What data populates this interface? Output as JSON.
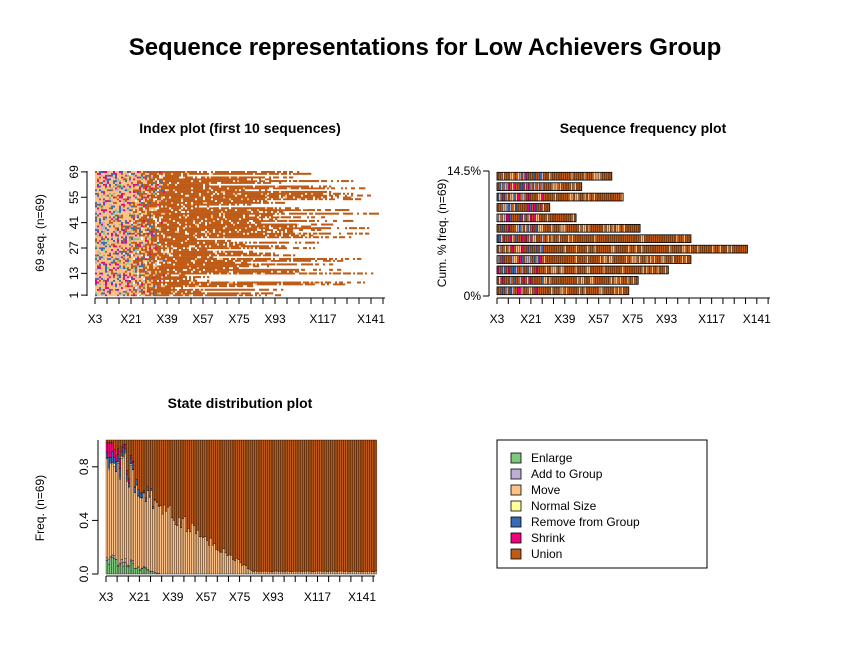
{
  "main_title": "Sequence representations for Low Achievers Group",
  "colors": {
    "Enlarge": "#7fc97f",
    "Add to Group": "#beaed4",
    "Move": "#fdc086",
    "Normal Size": "#ffff99",
    "Remove from Group": "#386cb0",
    "Shrink": "#f0027f",
    "Union": "#bf5b17"
  },
  "x_tick_labels": [
    "X3",
    "X21",
    "X39",
    "X57",
    "X75",
    "X93",
    "X117",
    "X141"
  ],
  "chart_data": [
    {
      "type": "heatmap",
      "title": "Index plot (first 10 sequences)",
      "ylabel": "69 seq. (n=69)",
      "y_tick_labels": [
        "1",
        "13",
        "27",
        "41",
        "55",
        "69"
      ],
      "n_sequences": 69,
      "x_range": [
        "X3",
        "X148"
      ]
    },
    {
      "type": "bar",
      "title": "Sequence frequency plot",
      "ylabel": "Cum. % freq. (n=69)",
      "y_tick_labels": [
        "0%",
        "14.5%"
      ],
      "orientation": "horizontal",
      "sequence_end_positions": [
        73,
        78,
        94,
        106,
        136,
        106,
        79,
        45,
        31,
        70,
        48,
        64
      ],
      "ylim": [
        0,
        14.5
      ]
    },
    {
      "type": "area",
      "title": "State distribution plot",
      "ylabel": "Freq. (n=69)",
      "y_tick_labels": [
        "0.0",
        "0.4",
        "0.8"
      ],
      "ylim": [
        0,
        1
      ],
      "states": [
        "Enlarge",
        "Add to Group",
        "Move",
        "Normal Size",
        "Remove from Group",
        "Shrink",
        "Union"
      ]
    }
  ],
  "legend": {
    "items": [
      "Enlarge",
      "Add to Group",
      "Move",
      "Normal Size",
      "Remove from Group",
      "Shrink",
      "Union"
    ]
  }
}
